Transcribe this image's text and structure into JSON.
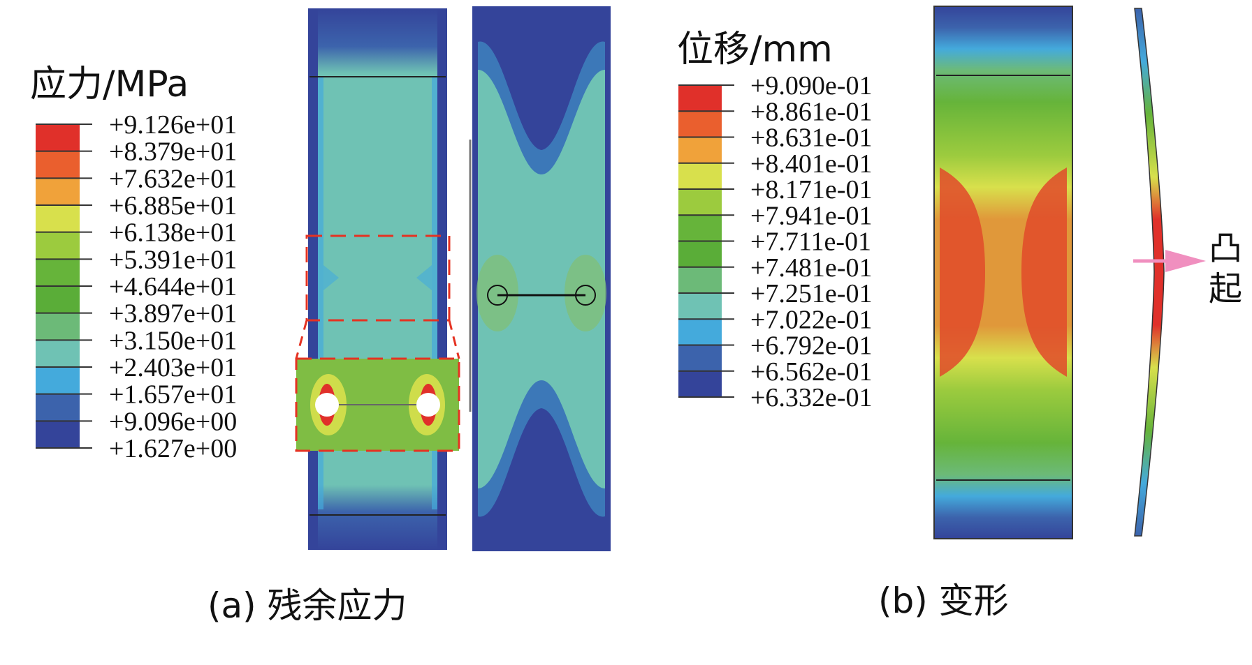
{
  "panel_a": {
    "legend_title": "应力/MPa",
    "legend_values": [
      "+9.126e+01",
      "+8.379e+01",
      "+7.632e+01",
      "+6.885e+01",
      "+6.138e+01",
      "+5.391e+01",
      "+4.644e+01",
      "+3.897e+01",
      "+3.150e+01",
      "+2.403e+01",
      "+1.657e+01",
      "+9.096e+00",
      "+1.627e+00"
    ],
    "caption": "(a) 残余应力"
  },
  "panel_b": {
    "legend_title": "位移/mm",
    "legend_values": [
      "+9.090e-01",
      "+8.861e-01",
      "+8.631e-01",
      "+8.401e-01",
      "+8.171e-01",
      "+7.941e-01",
      "+7.711e-01",
      "+7.481e-01",
      "+7.251e-01",
      "+7.022e-01",
      "+6.792e-01",
      "+6.562e-01",
      "+6.332e-01"
    ],
    "caption": "(b) 变形",
    "bulge_label_1": "凸",
    "bulge_label_2": "起"
  },
  "colors": {
    "bands": [
      "#e0302a",
      "#ea5f2e",
      "#f0a23a",
      "#d8e04c",
      "#9ccb3e",
      "#66b43a",
      "#5aad38",
      "#6cba78",
      "#6fc2b4",
      "#44aadc",
      "#3c63ac",
      "#34449a"
    ],
    "dashed_box": "#e53222",
    "arrow": "#f08fbf"
  }
}
